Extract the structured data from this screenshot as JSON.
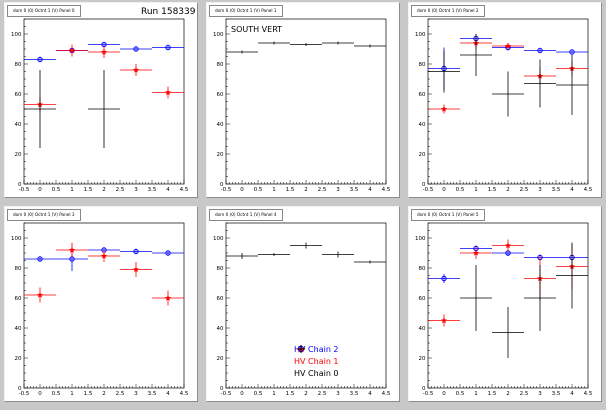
{
  "run_label": "Run 158339",
  "pads": [
    {
      "title": "dom 0 (0) Octnt 1 (V) Panel 0",
      "annotation": null,
      "series": [
        {
          "color": "#0000ff",
          "marker": "circle",
          "points": [
            {
              "x": 0,
              "y": 83,
              "ey": 1
            },
            {
              "x": 1,
              "y": 89,
              "ey": 1
            },
            {
              "x": 2,
              "y": 93,
              "ey": 1
            },
            {
              "x": 3,
              "y": 90,
              "ey": 1
            },
            {
              "x": 4,
              "y": 91,
              "ey": 1
            }
          ]
        },
        {
          "color": "#ff0000",
          "marker": "star",
          "points": [
            {
              "x": 0,
              "y": 53,
              "ey": 5
            },
            {
              "x": 1,
              "y": 89,
              "ey": 4
            },
            {
              "x": 2,
              "y": 88,
              "ey": 4
            },
            {
              "x": 3,
              "y": 76,
              "ey": 4
            },
            {
              "x": 4,
              "y": 61,
              "ey": 4
            }
          ]
        },
        {
          "color": "#000000",
          "marker": "plus",
          "points": [
            {
              "x": 0,
              "y": 50,
              "ey": 26
            },
            {
              "x": 2,
              "y": 50,
              "ey": 26
            }
          ]
        }
      ]
    },
    {
      "title": "dom 0 (0) Octnt 1 (V) Panel 1",
      "annotation": "SOUTH VERT",
      "series": [
        {
          "color": "#000000",
          "marker": "plus",
          "points": [
            {
              "x": 0,
              "y": 88,
              "ey": 1
            },
            {
              "x": 1,
              "y": 94,
              "ey": 1
            },
            {
              "x": 2,
              "y": 93,
              "ey": 1
            },
            {
              "x": 3,
              "y": 94,
              "ey": 1
            },
            {
              "x": 4,
              "y": 92,
              "ey": 1
            }
          ]
        }
      ]
    },
    {
      "title": "dom 0 (0) Octnt 1 (V) Panel 2",
      "annotation": null,
      "series": [
        {
          "color": "#0000ff",
          "marker": "circle",
          "points": [
            {
              "x": 0,
              "y": 77,
              "ey": 14
            },
            {
              "x": 1,
              "y": 97,
              "ey": 2
            },
            {
              "x": 2,
              "y": 91,
              "ey": 2
            },
            {
              "x": 3,
              "y": 89,
              "ey": 1
            },
            {
              "x": 4,
              "y": 88,
              "ey": 1
            }
          ]
        },
        {
          "color": "#ff0000",
          "marker": "star",
          "points": [
            {
              "x": 0,
              "y": 50,
              "ey": 3
            },
            {
              "x": 1,
              "y": 94,
              "ey": 4
            },
            {
              "x": 2,
              "y": 92,
              "ey": 2
            },
            {
              "x": 3,
              "y": 72,
              "ey": 6
            },
            {
              "x": 4,
              "y": 77,
              "ey": 5
            }
          ]
        },
        {
          "color": "#000000",
          "marker": "plus",
          "points": [
            {
              "x": 0,
              "y": 75,
              "ey": 14
            },
            {
              "x": 1,
              "y": 86,
              "ey": 14
            },
            {
              "x": 2,
              "y": 60,
              "ey": 15
            },
            {
              "x": 3,
              "y": 67,
              "ey": 16
            },
            {
              "x": 4,
              "y": 66,
              "ey": 20
            }
          ]
        }
      ]
    },
    {
      "title": "dom 0 (0) Octnt 1 (V) Panel 3",
      "annotation": null,
      "series": [
        {
          "color": "#0000ff",
          "marker": "circle",
          "points": [
            {
              "x": 0,
              "y": 86,
              "ey": 1
            },
            {
              "x": 1,
              "y": 86,
              "ey": 8
            },
            {
              "x": 2,
              "y": 92,
              "ey": 1
            },
            {
              "x": 3,
              "y": 91,
              "ey": 1
            },
            {
              "x": 4,
              "y": 90,
              "ey": 1
            }
          ]
        },
        {
          "color": "#ff0000",
          "marker": "star",
          "points": [
            {
              "x": 0,
              "y": 62,
              "ey": 5
            },
            {
              "x": 1,
              "y": 92,
              "ey": 5
            },
            {
              "x": 2,
              "y": 88,
              "ey": 4
            },
            {
              "x": 3,
              "y": 79,
              "ey": 5
            },
            {
              "x": 4,
              "y": 60,
              "ey": 5
            }
          ]
        },
        {
          "color": "#000000",
          "marker": "plus",
          "points": []
        }
      ]
    },
    {
      "title": "dom 0 (0) Octnt 1 (V) Panel 4",
      "annotation": null,
      "series": [
        {
          "color": "#000000",
          "marker": "plus",
          "points": [
            {
              "x": 0,
              "y": 88,
              "ey": 2
            },
            {
              "x": 1,
              "y": 89,
              "ey": 1
            },
            {
              "x": 2,
              "y": 95,
              "ey": 2
            },
            {
              "x": 3,
              "y": 89,
              "ey": 2
            },
            {
              "x": 4,
              "y": 84,
              "ey": 1
            }
          ]
        }
      ]
    },
    {
      "title": "dom 0 (0) Octnt 1 (V) Panel 5",
      "annotation": null,
      "series": [
        {
          "color": "#0000ff",
          "marker": "circle",
          "points": [
            {
              "x": 0,
              "y": 73,
              "ey": 3
            },
            {
              "x": 1,
              "y": 93,
              "ey": 2
            },
            {
              "x": 2,
              "y": 90,
              "ey": 2
            },
            {
              "x": 3,
              "y": 87,
              "ey": 2
            },
            {
              "x": 4,
              "y": 87,
              "ey": 2
            }
          ]
        },
        {
          "color": "#ff0000",
          "marker": "star",
          "points": [
            {
              "x": 0,
              "y": 45,
              "ey": 4
            },
            {
              "x": 1,
              "y": 90,
              "ey": 4
            },
            {
              "x": 2,
              "y": 95,
              "ey": 4
            },
            {
              "x": 3,
              "y": 73,
              "ey": 15
            },
            {
              "x": 4,
              "y": 81,
              "ey": 15
            }
          ]
        },
        {
          "color": "#000000",
          "marker": "plus",
          "points": [
            {
              "x": 1,
              "y": 60,
              "ey": 22
            },
            {
              "x": 2,
              "y": 37,
              "ey": 17
            },
            {
              "x": 3,
              "y": 60,
              "ey": 22
            },
            {
              "x": 4,
              "y": 75,
              "ey": 22
            }
          ]
        }
      ]
    }
  ],
  "legend": [
    {
      "label": "HV Chain 2",
      "color": "#0000ff",
      "marker": "circle"
    },
    {
      "label": "HV Chain 1",
      "color": "#ff0000",
      "marker": "star"
    },
    {
      "label": "HV Chain 0",
      "color": "#000000",
      "marker": "plus"
    }
  ],
  "chart_data": [
    {
      "type": "scatter",
      "title": "dom 0 (0) Octnt 1 (V) Panel 0",
      "xlim": [
        -0.5,
        4.5
      ],
      "ylim": [
        0,
        110
      ],
      "xticks": [
        "-0.5",
        "0",
        "0.5",
        "1",
        "1.5",
        "2",
        "2.5",
        "3",
        "3.5",
        "4",
        "4.5"
      ],
      "yticks": [
        "0",
        "20",
        "40",
        "60",
        "80",
        "100"
      ],
      "x": [
        0,
        1,
        2,
        3,
        4
      ],
      "series": [
        {
          "name": "HV Chain 2",
          "values": [
            83,
            89,
            93,
            90,
            91
          ]
        },
        {
          "name": "HV Chain 1",
          "values": [
            53,
            89,
            88,
            76,
            61
          ]
        },
        {
          "name": "HV Chain 0",
          "values": [
            50,
            null,
            50,
            null,
            null
          ]
        }
      ]
    },
    {
      "type": "scatter",
      "title": "dom 0 (0) Octnt 1 (V) Panel 1",
      "xlim": [
        -0.5,
        4.5
      ],
      "ylim": [
        0,
        110
      ],
      "xticks": [
        "-0.5",
        "0",
        "0.5",
        "1",
        "1.5",
        "2",
        "2.5",
        "3",
        "3.5",
        "4",
        "4.5"
      ],
      "yticks": [
        "0",
        "20",
        "40",
        "60",
        "80",
        "100"
      ],
      "x": [
        0,
        1,
        2,
        3,
        4
      ],
      "series": [
        {
          "name": "HV Chain 0",
          "values": [
            88,
            94,
            93,
            94,
            92
          ]
        }
      ]
    },
    {
      "type": "scatter",
      "title": "dom 0 (0) Octnt 1 (V) Panel 2",
      "xlim": [
        -0.5,
        4.5
      ],
      "ylim": [
        0,
        110
      ],
      "xticks": [
        "-0.5",
        "0",
        "0.5",
        "1",
        "1.5",
        "2",
        "2.5",
        "3",
        "3.5",
        "4",
        "4.5"
      ],
      "yticks": [
        "0",
        "20",
        "40",
        "60",
        "80",
        "100"
      ],
      "x": [
        0,
        1,
        2,
        3,
        4
      ],
      "series": [
        {
          "name": "HV Chain 2",
          "values": [
            77,
            97,
            91,
            89,
            88
          ]
        },
        {
          "name": "HV Chain 1",
          "values": [
            50,
            94,
            92,
            72,
            77
          ]
        },
        {
          "name": "HV Chain 0",
          "values": [
            75,
            86,
            60,
            67,
            66
          ]
        }
      ]
    },
    {
      "type": "scatter",
      "title": "dom 0 (0) Octnt 1 (V) Panel 3",
      "xlim": [
        -0.5,
        4.5
      ],
      "ylim": [
        0,
        110
      ],
      "xticks": [
        "-0.5",
        "0",
        "0.5",
        "1",
        "1.5",
        "2",
        "2.5",
        "3",
        "3.5",
        "4",
        "4.5"
      ],
      "yticks": [
        "0",
        "20",
        "40",
        "60",
        "80",
        "100"
      ],
      "x": [
        0,
        1,
        2,
        3,
        4
      ],
      "series": [
        {
          "name": "HV Chain 2",
          "values": [
            86,
            86,
            92,
            91,
            90
          ]
        },
        {
          "name": "HV Chain 1",
          "values": [
            62,
            92,
            88,
            79,
            60
          ]
        }
      ]
    },
    {
      "type": "scatter",
      "title": "dom 0 (0) Octnt 1 (V) Panel 4",
      "xlim": [
        -0.5,
        4.5
      ],
      "ylim": [
        0,
        110
      ],
      "xticks": [
        "-0.5",
        "0",
        "0.5",
        "1",
        "1.5",
        "2",
        "2.5",
        "3",
        "3.5",
        "4",
        "4.5"
      ],
      "yticks": [
        "0",
        "20",
        "40",
        "60",
        "80",
        "100"
      ],
      "x": [
        0,
        1,
        2,
        3,
        4
      ],
      "series": [
        {
          "name": "HV Chain 0",
          "values": [
            88,
            89,
            95,
            89,
            84
          ]
        }
      ]
    },
    {
      "type": "scatter",
      "title": "dom 0 (0) Octnt 1 (V) Panel 5",
      "xlim": [
        -0.5,
        4.5
      ],
      "ylim": [
        0,
        110
      ],
      "xticks": [
        "-0.5",
        "0",
        "0.5",
        "1",
        "1.5",
        "2",
        "2.5",
        "3",
        "3.5",
        "4",
        "4.5"
      ],
      "yticks": [
        "0",
        "20",
        "40",
        "60",
        "80",
        "100"
      ],
      "x": [
        0,
        1,
        2,
        3,
        4
      ],
      "series": [
        {
          "name": "HV Chain 2",
          "values": [
            73,
            93,
            90,
            87,
            87
          ]
        },
        {
          "name": "HV Chain 1",
          "values": [
            45,
            90,
            95,
            73,
            81
          ]
        },
        {
          "name": "HV Chain 0",
          "values": [
            null,
            60,
            37,
            60,
            75
          ]
        }
      ]
    }
  ]
}
